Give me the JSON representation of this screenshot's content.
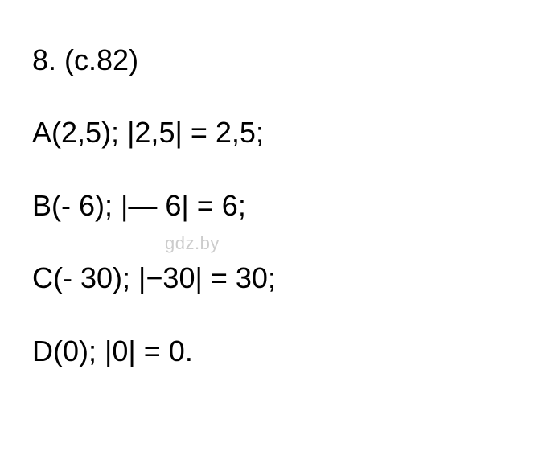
{
  "watermark": "gdz.by",
  "header": {
    "number": "8.",
    "page_ref": "(с.82)"
  },
  "lines": [
    {
      "point": "A",
      "coord": "2,5",
      "abs_expr": "|2,5|",
      "result": "2,5"
    },
    {
      "point": "B",
      "coord": "- 6",
      "abs_expr": "|— 6|",
      "result": "6"
    },
    {
      "point": "C",
      "coord": "- 30",
      "abs_expr": "|−30|",
      "result": "30"
    },
    {
      "point": "D",
      "coord": "0",
      "abs_expr": "|0|",
      "result": "0"
    }
  ],
  "styling": {
    "background_color": "#ffffff",
    "text_color": "#000000",
    "watermark_color": "#cccccc",
    "font_size": 36,
    "watermark_font_size": 22,
    "font_family": "Arial"
  }
}
